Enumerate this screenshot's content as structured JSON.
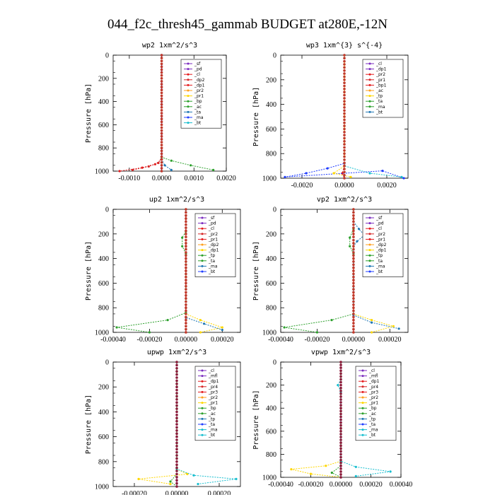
{
  "figure": {
    "title": "044_f2c_thresh45_gammab  BUDGET at280E,-12N"
  },
  "chart_data": [
    {
      "type": "line",
      "title": "wp2  1xm^2/s^3",
      "ylabel": "Pressure [hPa]",
      "xlim": [
        -0.0015,
        0.002
      ],
      "ylim": [
        1000,
        0
      ],
      "xticks": [
        -0.001,
        0,
        0.001,
        0.002
      ],
      "xtick_labels": [
        "-0.0010",
        "0.0000",
        "0.0010",
        "0.0020"
      ],
      "yticks": [
        0,
        200,
        400,
        600,
        800,
        1000
      ],
      "ytick_labels": [
        "0",
        "200",
        "400",
        "600",
        "800",
        "1000"
      ],
      "legend": [
        "_sf",
        "_pd",
        "_cl",
        "_dp2",
        "_dp1",
        "_pr2",
        "_pr1",
        "_bp",
        "_ac",
        "_ta",
        "_ma",
        "_bt"
      ],
      "series": [
        {
          "name": "_cl",
          "color": "#e41a1c",
          "values": [
            [
              0,
              0
            ],
            [
              0,
              800
            ],
            [
              0,
              900
            ],
            [
              -0.0002,
              940
            ],
            [
              -0.0006,
              970
            ],
            [
              -0.0013,
              1000
            ]
          ]
        },
        {
          "name": "_dp2",
          "color": "#d62728",
          "values": [
            [
              0,
              0
            ],
            [
              0,
              880
            ],
            [
              -0.0001,
              930
            ],
            [
              -0.0004,
              960
            ],
            [
              -0.0009,
              990
            ]
          ]
        },
        {
          "name": "_bp",
          "color": "#2ca02c",
          "values": [
            [
              0,
              0
            ],
            [
              0,
              880
            ],
            [
              0.0003,
              910
            ],
            [
              0.0009,
              950
            ],
            [
              0.0016,
              990
            ]
          ]
        },
        {
          "name": "_ac",
          "color": "#1f77b4",
          "values": [
            [
              0,
              0
            ],
            [
              0,
              900
            ],
            [
              0.0001,
              950
            ],
            [
              0.0003,
              990
            ]
          ]
        },
        {
          "name": "_pd",
          "color": "#7b2cbf",
          "values": [
            [
              0,
              0
            ],
            [
              0,
              500
            ],
            [
              0,
              800
            ],
            [
              0,
              1000
            ]
          ]
        }
      ]
    },
    {
      "type": "line",
      "title": "wp3  1xm^{3} s^{-4}",
      "ylabel": "Pressure [hPa]",
      "xlim": [
        -0.003,
        0.003
      ],
      "ylim": [
        1000,
        0
      ],
      "xticks": [
        -0.002,
        0,
        0.002
      ],
      "xtick_labels": [
        "-0.0020",
        "0.0000",
        "0.0020"
      ],
      "yticks": [
        0,
        200,
        400,
        600,
        800,
        1000
      ],
      "ytick_labels": [
        "0",
        "200",
        "400",
        "600",
        "800",
        "1000"
      ],
      "legend": [
        "_cl",
        "_dp1",
        "_pr2",
        "_pr1",
        "_bp1",
        "_ac",
        "_tp",
        "_ta",
        "_ma",
        "_bt"
      ],
      "series": [
        {
          "name": "_cl",
          "color": "#e41a1c",
          "values": [
            [
              0,
              0
            ],
            [
              0,
              500
            ],
            [
              0,
              900
            ],
            [
              -0.0001,
              960
            ],
            [
              0,
              1000
            ]
          ]
        },
        {
          "name": "_tp",
          "color": "#1f3cff",
          "values": [
            [
              0,
              0
            ],
            [
              0,
              880
            ],
            [
              -0.0008,
              920
            ],
            [
              -0.0018,
              960
            ],
            [
              -0.0028,
              990
            ],
            [
              0.0018,
              940
            ],
            [
              0.0028,
              1000
            ]
          ]
        },
        {
          "name": "_ta",
          "color": "#17becf",
          "values": [
            [
              0,
              0
            ],
            [
              0,
              900
            ],
            [
              0.0012,
              960
            ],
            [
              0.0027,
              990
            ]
          ]
        },
        {
          "name": "_pr1",
          "color": "#ffd700",
          "values": [
            [
              0,
              0
            ],
            [
              0,
              900
            ],
            [
              -0.0005,
              960
            ],
            [
              0.0003,
              990
            ]
          ]
        }
      ]
    },
    {
      "type": "line",
      "title": "up2  1xm^2/s^3",
      "ylabel": "Pressure [hPa]",
      "xlim": [
        -0.0004,
        0.0003
      ],
      "ylim": [
        1000,
        0
      ],
      "xticks": [
        -0.0004,
        -0.0002,
        0,
        0.0002
      ],
      "xtick_labels": [
        "-0.00040",
        "-0.00020",
        "0.00000",
        "0.00020"
      ],
      "yticks": [
        0,
        200,
        400,
        600,
        800,
        1000
      ],
      "ytick_labels": [
        "0",
        "200",
        "400",
        "600",
        "800",
        "1000"
      ],
      "legend": [
        "_sf",
        "_pd",
        "_cl",
        "_pr2",
        "_pr1",
        "_dp2",
        "_dp1",
        "_tp",
        "_ta",
        "_ma",
        "_bt"
      ],
      "series": [
        {
          "name": "_dp1",
          "color": "#2ca02c",
          "values": [
            [
              0,
              0
            ],
            [
              0,
              180
            ],
            [
              -2e-05,
              230
            ],
            [
              -2e-05,
              300
            ],
            [
              0,
              360
            ],
            [
              0,
              840
            ],
            [
              -0.0001,
              900
            ],
            [
              -0.00038,
              960
            ],
            [
              -0.0002,
              1000
            ]
          ]
        },
        {
          "name": "_pr1",
          "color": "#ffd700",
          "values": [
            [
              0,
              0
            ],
            [
              0,
              850
            ],
            [
              8e-05,
              900
            ],
            [
              0.0002,
              960
            ],
            [
              8e-05,
              1000
            ]
          ]
        },
        {
          "name": "_tp",
          "color": "#1f77b4",
          "values": [
            [
              0,
              0
            ],
            [
              0,
              880
            ],
            [
              0.0001,
              930
            ],
            [
              0.0002,
              980
            ]
          ]
        },
        {
          "name": "_cl",
          "color": "#e41a1c",
          "values": [
            [
              0,
              0
            ],
            [
              0,
              500
            ],
            [
              0,
              1000
            ]
          ]
        }
      ]
    },
    {
      "type": "line",
      "title": "vp2  1xm^2/s^3",
      "ylabel": "Pressure [hPa]",
      "xlim": [
        -0.0004,
        0.0003
      ],
      "ylim": [
        1000,
        0
      ],
      "xticks": [
        -0.0004,
        -0.0002,
        0,
        0.0002
      ],
      "xtick_labels": [
        "-0.00040",
        "-0.00020",
        "0.00000",
        "0.00020"
      ],
      "yticks": [
        0,
        200,
        400,
        600,
        800,
        1000
      ],
      "ytick_labels": [
        "0",
        "200",
        "400",
        "600",
        "800",
        "1000"
      ],
      "legend": [
        "_sf",
        "_pd",
        "_cl",
        "_pr2",
        "_pr1",
        "_dp2",
        "_dp1",
        "_tp",
        "_ta",
        "_ma",
        "_bt"
      ],
      "series": [
        {
          "name": "_dp1",
          "color": "#2ca02c",
          "values": [
            [
              0,
              0
            ],
            [
              0,
              160
            ],
            [
              -2e-05,
              230
            ],
            [
              -2e-05,
              300
            ],
            [
              0,
              360
            ],
            [
              0,
              850
            ],
            [
              -0.00012,
              900
            ],
            [
              -0.00038,
              960
            ],
            [
              -0.0002,
              1000
            ]
          ]
        },
        {
          "name": "_tp",
          "color": "#1f77b4",
          "values": [
            [
              0,
              0
            ],
            [
              0,
              100
            ],
            [
              3e-05,
              160
            ],
            [
              6e-05,
              210
            ],
            [
              2e-05,
              260
            ],
            [
              0,
              300
            ],
            [
              0,
              860
            ],
            [
              0.0001,
              920
            ],
            [
              0.00025,
              970
            ]
          ]
        },
        {
          "name": "_pr1",
          "color": "#ffd700",
          "values": [
            [
              0,
              0
            ],
            [
              0,
              850
            ],
            [
              0.0001,
              900
            ],
            [
              0.00022,
              950
            ],
            [
              0.0001,
              1000
            ]
          ]
        },
        {
          "name": "_cl",
          "color": "#e41a1c",
          "values": [
            [
              0,
              0
            ],
            [
              0,
              500
            ],
            [
              0,
              1000
            ]
          ]
        }
      ]
    },
    {
      "type": "line",
      "title": "upwp  1xm^2/s^3",
      "ylabel": "Pressure [hPa]",
      "xlim": [
        -0.0003,
        0.0003
      ],
      "ylim": [
        1000,
        0
      ],
      "xticks": [
        -0.0002,
        0,
        0.0002
      ],
      "xtick_labels": [
        "-0.00020",
        "0.00000",
        "0.00020"
      ],
      "yticks": [
        0,
        200,
        400,
        600,
        800,
        1000
      ],
      "ytick_labels": [
        "0",
        "200",
        "400",
        "600",
        "800",
        "1000"
      ],
      "legend": [
        "_cl",
        "_mfl",
        "_dp1",
        "_pr4",
        "_pr3",
        "_pr2",
        "_pr1",
        "_bp",
        "_ac",
        "_tp",
        "_ta",
        "_ma",
        "_bt"
      ],
      "series": [
        {
          "name": "_pr1",
          "color": "#ffd700",
          "values": [
            [
              0,
              0
            ],
            [
              0,
              860
            ],
            [
              5e-05,
              900
            ],
            [
              -0.00018,
              940
            ],
            [
              -3e-05,
              980
            ]
          ]
        },
        {
          "name": "_ta",
          "color": "#17becf",
          "values": [
            [
              0,
              0
            ],
            [
              0,
              860
            ],
            [
              8e-05,
              910
            ],
            [
              0.00028,
              940
            ],
            [
              0.0001,
              980
            ]
          ]
        },
        {
          "name": "_mfl",
          "color": "#7b2cbf",
          "values": [
            [
              0,
              0
            ],
            [
              0,
              500
            ],
            [
              0,
              1000
            ]
          ]
        },
        {
          "name": "_bp",
          "color": "#2ca02c",
          "values": [
            [
              0,
              0
            ],
            [
              0,
              900
            ],
            [
              -3e-05,
              960
            ],
            [
              0,
              1000
            ]
          ]
        }
      ]
    },
    {
      "type": "line",
      "title": "vpwp  1xm^2/s^3",
      "ylabel": "Pressure [hPa]",
      "xlim": [
        -0.0004,
        0.0004
      ],
      "ylim": [
        1000,
        0
      ],
      "xticks": [
        -0.0004,
        -0.0002,
        0,
        0.0002,
        0.0004
      ],
      "xtick_labels": [
        "-0.00040",
        "-0.00020",
        "0.00000",
        "0.00020",
        "0.00040"
      ],
      "yticks": [
        0,
        200,
        400,
        600,
        800,
        1000
      ],
      "ytick_labels": [
        "0",
        "200",
        "400",
        "600",
        "800",
        "1000"
      ],
      "legend": [
        "_cl",
        "_mfl",
        "_dp1",
        "_pr4",
        "_pr3",
        "_pr2",
        "_pr1",
        "_bp",
        "_ac",
        "_tp",
        "_ta",
        "_ma",
        "_bt"
      ],
      "series": [
        {
          "name": "_pr1",
          "color": "#ffd700",
          "values": [
            [
              0,
              0
            ],
            [
              0,
              860
            ],
            [
              -0.0001,
              900
            ],
            [
              -0.00033,
              930
            ],
            [
              -0.0002,
              970
            ],
            [
              0,
              1000
            ]
          ]
        },
        {
          "name": "_ta",
          "color": "#17becf",
          "values": [
            [
              0,
              0
            ],
            [
              0,
              150
            ],
            [
              -2e-05,
              200
            ],
            [
              0,
              260
            ],
            [
              0,
              860
            ],
            [
              0.0001,
              910
            ],
            [
              0.00033,
              950
            ],
            [
              0.0001,
              990
            ]
          ]
        },
        {
          "name": "_mfl",
          "color": "#7b2cbf",
          "values": [
            [
              0,
              0
            ],
            [
              0,
              500
            ],
            [
              0,
              1000
            ]
          ]
        },
        {
          "name": "_bp",
          "color": "#2ca02c",
          "values": [
            [
              0,
              0
            ],
            [
              0,
              900
            ],
            [
              -6e-05,
              960
            ],
            [
              0,
              1000
            ]
          ]
        }
      ]
    }
  ]
}
